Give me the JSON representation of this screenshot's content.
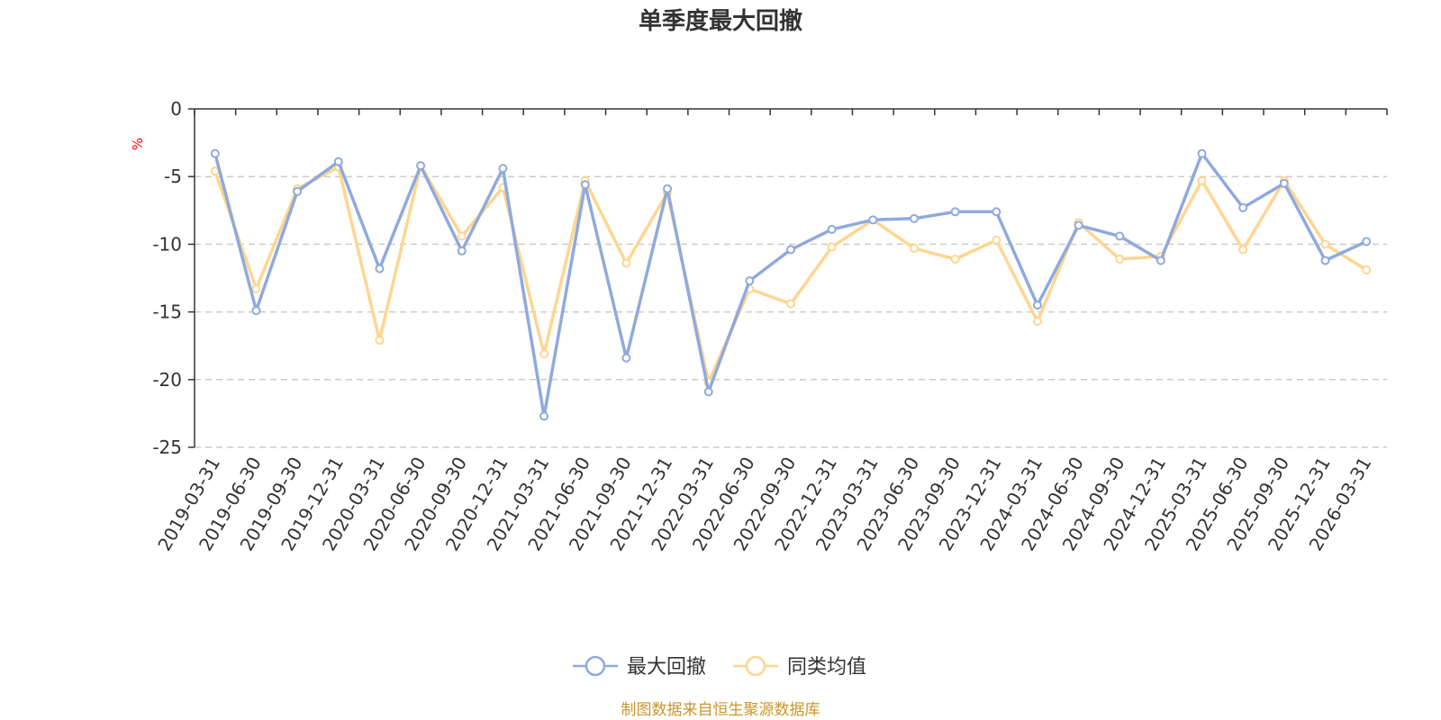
{
  "chart_data": {
    "type": "line",
    "title": "单季度最大回撤",
    "ylabel": "%",
    "xlabel": "",
    "ylim": [
      -25,
      0
    ],
    "yticks": [
      0,
      -5,
      -10,
      -15,
      -20,
      -25
    ],
    "grid": true,
    "legend_position": "bottom-center",
    "categories": [
      "2019-03-31",
      "2019-06-30",
      "2019-09-30",
      "2019-12-31",
      "2020-03-31",
      "2020-06-30",
      "2020-09-30",
      "2020-12-31",
      "2021-03-31",
      "2021-06-30",
      "2021-09-30",
      "2021-12-31",
      "2022-03-31",
      "2022-06-30",
      "2022-09-30",
      "2022-12-31",
      "2023-03-31",
      "2023-06-30",
      "2023-09-30",
      "2023-12-31",
      "2024-03-31",
      "2024-06-30",
      "2024-09-30",
      "2024-12-31",
      "2025-03-31",
      "2025-06-30",
      "2025-09-30",
      "2025-12-31",
      "2026-03-31"
    ],
    "series": [
      {
        "name": "最大回撤",
        "color": "#8faadc",
        "values": [
          -3.3,
          -14.9,
          -6.1,
          -3.9,
          -11.8,
          -4.2,
          -10.5,
          -4.4,
          -22.7,
          -5.6,
          -18.4,
          -5.9,
          -20.9,
          -12.7,
          -10.4,
          -8.9,
          -8.2,
          -8.1,
          -7.6,
          -7.6,
          -14.5,
          -8.6,
          -9.4,
          -11.2,
          -3.3,
          -7.3,
          -5.5,
          -11.2,
          -9.8
        ]
      },
      {
        "name": "同类均值",
        "color": "#ffd591",
        "values": [
          -4.6,
          -13.3,
          -5.9,
          -4.3,
          -17.1,
          -4.2,
          -9.4,
          -5.8,
          -18.1,
          -5.3,
          -11.4,
          -6.2,
          -20.2,
          -13.3,
          -14.4,
          -10.2,
          -8.2,
          -10.3,
          -11.1,
          -9.7,
          -15.7,
          -8.4,
          -11.1,
          -10.9,
          -5.3,
          -10.4,
          -5.3,
          -10.0,
          -11.9
        ]
      }
    ]
  },
  "legend": {
    "items": [
      {
        "label": "最大回撤",
        "color": "#8faadc"
      },
      {
        "label": "同类均值",
        "color": "#ffd591"
      }
    ]
  },
  "unit_label": {
    "text": "%",
    "color": "#ff0000"
  },
  "source": {
    "text": "制图数据来自恒生聚源数据库",
    "color": "#c9962a"
  },
  "colors": {
    "axis": "#333333",
    "grid": "#cccccc",
    "point_fill": "#ffffff"
  }
}
